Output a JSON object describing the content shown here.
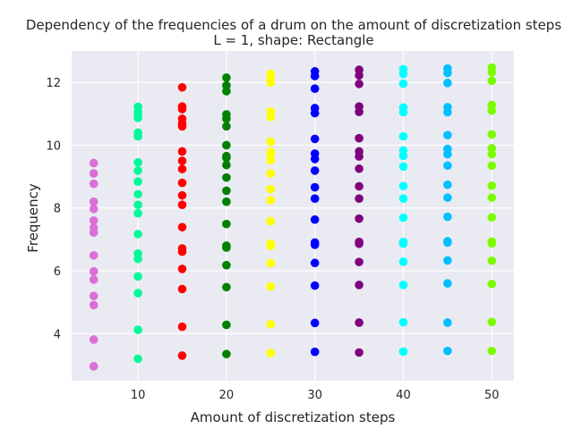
{
  "chart_data": {
    "type": "scatter",
    "title": "Dependency of the frequencies of a drum on the amount of discretization steps",
    "subtitle": "L = 1, shape: Rectangle",
    "xlabel": "Amount of discretization steps",
    "ylabel": "Frequency",
    "xlim": [
      2.5,
      52.5
    ],
    "ylim": [
      2.5,
      13
    ],
    "xticks": [
      10,
      20,
      30,
      40,
      50
    ],
    "yticks": [
      4,
      6,
      8,
      10,
      12
    ],
    "grid": true,
    "background": "#eaeaf2",
    "series": [
      {
        "x": 5,
        "color": "#da70d6",
        "values": [
          2.96,
          3.81,
          4.91,
          5.2,
          5.72,
          5.98,
          6.49,
          7.22,
          7.37,
          7.6,
          7.97,
          8.2,
          8.77,
          9.1,
          9.43
        ]
      },
      {
        "x": 10,
        "color": "#00fa9a",
        "values": [
          3.2,
          4.12,
          5.29,
          5.82,
          6.38,
          6.55,
          7.17,
          7.83,
          8.1,
          8.44,
          8.84,
          9.19,
          9.45,
          10.28,
          10.4,
          10.87,
          10.93,
          11.07,
          11.22
        ]
      },
      {
        "x": 15,
        "color": "#ff0000",
        "values": [
          3.3,
          4.22,
          5.42,
          6.06,
          6.61,
          6.71,
          7.39,
          8.1,
          8.4,
          8.8,
          9.24,
          9.5,
          9.8,
          10.6,
          10.69,
          10.84,
          11.15,
          11.23,
          11.84
        ]
      },
      {
        "x": 20,
        "color": "#008000",
        "values": [
          3.35,
          4.28,
          5.48,
          6.18,
          6.74,
          6.8,
          7.49,
          8.2,
          8.55,
          8.97,
          9.37,
          9.6,
          9.65,
          10.0,
          10.6,
          10.84,
          10.98,
          11.72,
          11.9,
          12.15
        ]
      },
      {
        "x": 25,
        "color": "#ffff00",
        "values": [
          3.38,
          4.3,
          5.5,
          6.24,
          6.79,
          6.86,
          7.58,
          8.25,
          8.6,
          9.1,
          9.52,
          9.72,
          9.79,
          10.11,
          10.9,
          11.07,
          11.99,
          12.1,
          12.27
        ]
      },
      {
        "x": 30,
        "color": "#0000ff",
        "values": [
          3.42,
          4.34,
          5.53,
          6.25,
          6.83,
          6.9,
          7.63,
          8.3,
          8.66,
          9.19,
          9.56,
          9.73,
          10.2,
          11.02,
          11.18,
          11.8,
          12.2,
          12.35
        ]
      },
      {
        "x": 35,
        "color": "#800080",
        "values": [
          3.4,
          4.35,
          5.55,
          6.28,
          6.86,
          6.92,
          7.66,
          8.3,
          8.69,
          9.25,
          9.64,
          9.8,
          10.22,
          11.06,
          11.23,
          11.95,
          12.22,
          12.4
        ]
      },
      {
        "x": 40,
        "color": "#00ffff",
        "values": [
          3.43,
          4.36,
          5.55,
          6.29,
          6.86,
          6.92,
          7.69,
          8.3,
          8.7,
          9.32,
          9.66,
          9.83,
          10.28,
          11.05,
          11.2,
          11.96,
          12.27,
          12.42
        ]
      },
      {
        "x": 45,
        "color": "#00bfff",
        "values": [
          3.45,
          4.35,
          5.6,
          6.33,
          6.9,
          6.94,
          7.72,
          8.33,
          8.74,
          9.35,
          9.71,
          9.88,
          10.32,
          11.05,
          11.21,
          11.98,
          12.3,
          12.44
        ]
      },
      {
        "x": 50,
        "color": "#7cfc00",
        "values": [
          3.45,
          4.37,
          5.58,
          6.32,
          6.87,
          6.93,
          7.7,
          8.33,
          8.71,
          9.35,
          9.71,
          9.9,
          10.34,
          11.1,
          11.28,
          12.05,
          12.32,
          12.47
        ]
      }
    ]
  }
}
